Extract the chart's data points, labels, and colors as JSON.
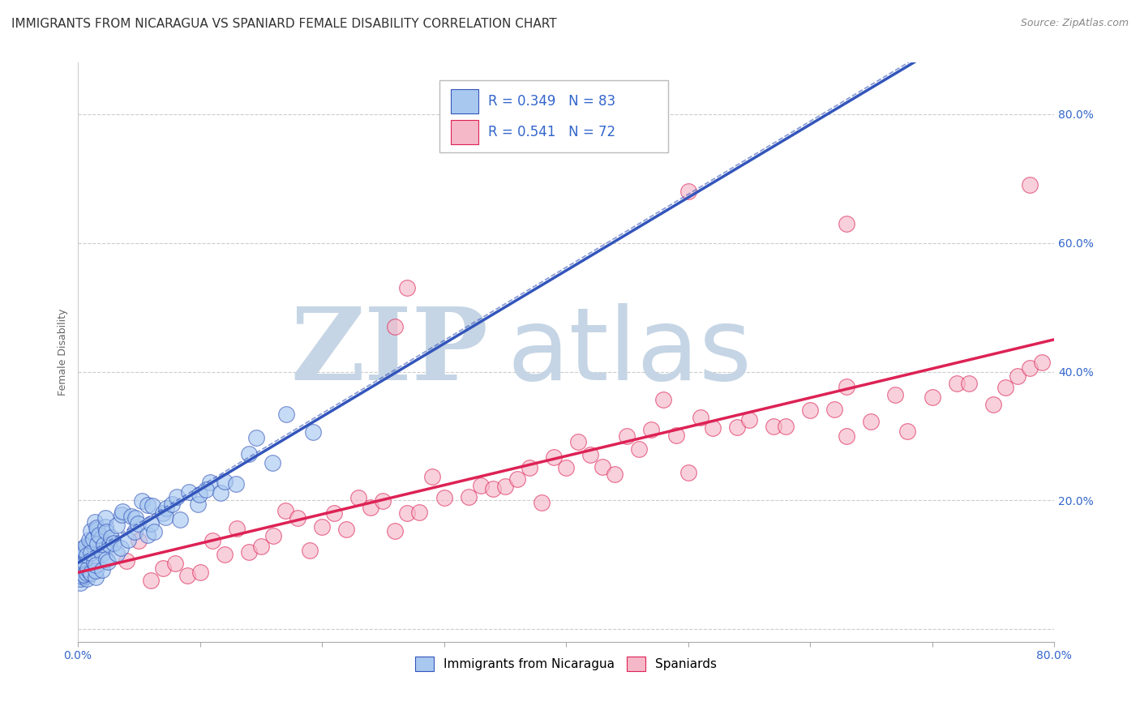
{
  "title": "IMMIGRANTS FROM NICARAGUA VS SPANIARD FEMALE DISABILITY CORRELATION CHART",
  "source": "Source: ZipAtlas.com",
  "ylabel": "Female Disability",
  "r_nicaragua": 0.349,
  "n_nicaragua": 83,
  "r_spaniards": 0.541,
  "n_spaniards": 72,
  "xlim": [
    0,
    0.8
  ],
  "ylim": [
    -0.02,
    0.88
  ],
  "color_nicaragua": "#a8c8f0",
  "color_spaniards": "#f5b8c8",
  "line_color_nicaragua": "#3355bb",
  "line_color_spaniards": "#dd2255",
  "background_color": "#ffffff",
  "watermark_zip": "ZIP",
  "watermark_atlas": "atlas",
  "watermark_color_zip": "#c5d5e5",
  "watermark_color_atlas": "#c5d5e5",
  "title_fontsize": 11,
  "axis_label_fontsize": 9,
  "tick_fontsize": 10,
  "legend_fontsize": 11,
  "seed": 42,
  "nic_x_data": [
    0.001,
    0.002,
    0.002,
    0.003,
    0.003,
    0.004,
    0.004,
    0.005,
    0.005,
    0.005,
    0.006,
    0.006,
    0.007,
    0.007,
    0.008,
    0.008,
    0.009,
    0.009,
    0.01,
    0.01,
    0.01,
    0.011,
    0.011,
    0.012,
    0.012,
    0.013,
    0.013,
    0.014,
    0.014,
    0.015,
    0.015,
    0.016,
    0.016,
    0.017,
    0.018,
    0.018,
    0.019,
    0.02,
    0.02,
    0.021,
    0.022,
    0.022,
    0.023,
    0.025,
    0.026,
    0.027,
    0.028,
    0.03,
    0.031,
    0.033,
    0.035,
    0.036,
    0.038,
    0.04,
    0.042,
    0.045,
    0.048,
    0.05,
    0.052,
    0.055,
    0.058,
    0.06,
    0.063,
    0.065,
    0.068,
    0.07,
    0.072,
    0.075,
    0.08,
    0.085,
    0.09,
    0.095,
    0.1,
    0.105,
    0.11,
    0.115,
    0.12,
    0.13,
    0.14,
    0.15,
    0.16,
    0.17,
    0.19
  ],
  "nic_y_data": [
    0.08,
    0.09,
    0.1,
    0.07,
    0.11,
    0.09,
    0.12,
    0.08,
    0.1,
    0.13,
    0.09,
    0.11,
    0.1,
    0.12,
    0.08,
    0.13,
    0.09,
    0.11,
    0.1,
    0.12,
    0.14,
    0.09,
    0.13,
    0.11,
    0.15,
    0.1,
    0.12,
    0.11,
    0.14,
    0.09,
    0.13,
    0.12,
    0.15,
    0.1,
    0.11,
    0.14,
    0.13,
    0.12,
    0.16,
    0.11,
    0.13,
    0.15,
    0.14,
    0.12,
    0.16,
    0.13,
    0.15,
    0.14,
    0.16,
    0.15,
    0.17,
    0.14,
    0.16,
    0.15,
    0.18,
    0.16,
    0.17,
    0.16,
    0.18,
    0.17,
    0.19,
    0.16,
    0.18,
    0.17,
    0.2,
    0.18,
    0.17,
    0.19,
    0.2,
    0.18,
    0.21,
    0.19,
    0.22,
    0.2,
    0.21,
    0.23,
    0.22,
    0.24,
    0.26,
    0.28,
    0.27,
    0.32,
    0.3
  ],
  "spa_x_data": [
    0.04,
    0.05,
    0.06,
    0.07,
    0.08,
    0.09,
    0.1,
    0.11,
    0.12,
    0.13,
    0.14,
    0.15,
    0.16,
    0.17,
    0.18,
    0.19,
    0.2,
    0.21,
    0.22,
    0.23,
    0.24,
    0.25,
    0.26,
    0.27,
    0.28,
    0.29,
    0.3,
    0.32,
    0.33,
    0.34,
    0.35,
    0.36,
    0.37,
    0.38,
    0.39,
    0.4,
    0.41,
    0.42,
    0.43,
    0.44,
    0.45,
    0.46,
    0.47,
    0.48,
    0.49,
    0.5,
    0.51,
    0.52,
    0.54,
    0.55,
    0.57,
    0.58,
    0.6,
    0.62,
    0.63,
    0.65,
    0.67,
    0.68,
    0.7,
    0.72,
    0.73,
    0.75,
    0.76,
    0.77,
    0.78,
    0.79,
    0.5,
    0.63,
    0.78,
    0.27,
    0.26,
    0.63
  ],
  "spa_y_data": [
    0.09,
    0.1,
    0.08,
    0.11,
    0.12,
    0.1,
    0.09,
    0.13,
    0.11,
    0.14,
    0.12,
    0.1,
    0.15,
    0.13,
    0.16,
    0.14,
    0.18,
    0.17,
    0.16,
    0.19,
    0.18,
    0.2,
    0.17,
    0.21,
    0.19,
    0.22,
    0.2,
    0.23,
    0.22,
    0.21,
    0.24,
    0.23,
    0.25,
    0.22,
    0.26,
    0.24,
    0.27,
    0.25,
    0.28,
    0.26,
    0.29,
    0.27,
    0.3,
    0.28,
    0.29,
    0.22,
    0.31,
    0.3,
    0.32,
    0.31,
    0.33,
    0.32,
    0.35,
    0.34,
    0.33,
    0.36,
    0.35,
    0.34,
    0.37,
    0.36,
    0.38,
    0.37,
    0.39,
    0.38,
    0.42,
    0.41,
    0.68,
    0.63,
    0.69,
    0.53,
    0.47,
    0.3
  ]
}
